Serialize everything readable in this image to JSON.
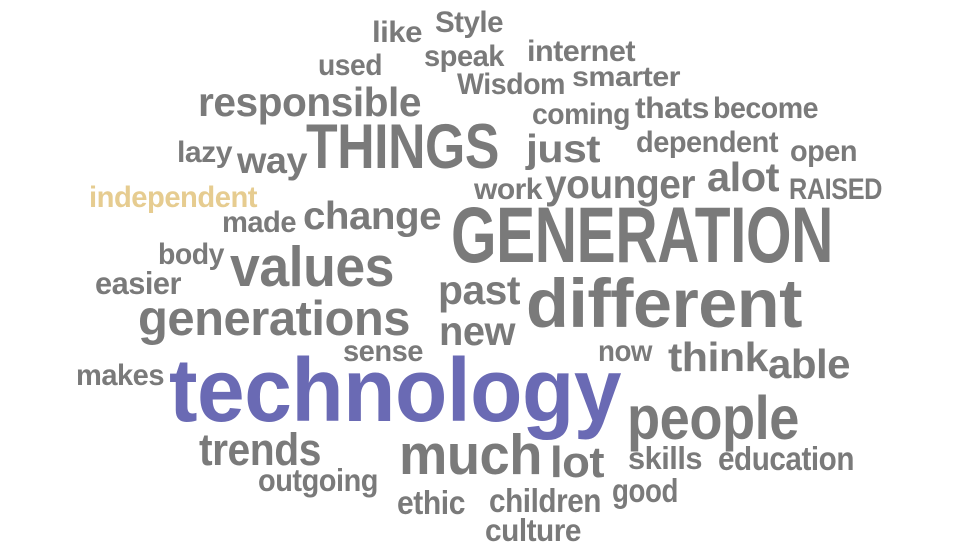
{
  "word_cloud": {
    "colors": {
      "default": "#7a7a7a",
      "technology": "#6a6ab4",
      "independent": "#e6cc90"
    },
    "words": [
      {
        "text": "Style",
        "color": "default"
      },
      {
        "text": "like",
        "color": "default"
      },
      {
        "text": "speak",
        "color": "default"
      },
      {
        "text": "internet",
        "color": "default"
      },
      {
        "text": "used",
        "color": "default"
      },
      {
        "text": "Wisdom",
        "color": "default"
      },
      {
        "text": "smarter",
        "color": "default"
      },
      {
        "text": "responsible",
        "color": "default"
      },
      {
        "text": "coming",
        "color": "default"
      },
      {
        "text": "thats",
        "color": "default"
      },
      {
        "text": "become",
        "color": "default"
      },
      {
        "text": "THINGS",
        "color": "default"
      },
      {
        "text": "lazy",
        "color": "default"
      },
      {
        "text": "way",
        "color": "default"
      },
      {
        "text": "just",
        "color": "default"
      },
      {
        "text": "dependent",
        "color": "default"
      },
      {
        "text": "open",
        "color": "default"
      },
      {
        "text": "work",
        "color": "default"
      },
      {
        "text": "younger",
        "color": "default"
      },
      {
        "text": "alot",
        "color": "default"
      },
      {
        "text": "RAISED",
        "color": "default"
      },
      {
        "text": "independent",
        "color": "independent"
      },
      {
        "text": "made",
        "color": "default"
      },
      {
        "text": "change",
        "color": "default"
      },
      {
        "text": "GENERATION",
        "color": "default"
      },
      {
        "text": "body",
        "color": "default"
      },
      {
        "text": "values",
        "color": "default"
      },
      {
        "text": "easier",
        "color": "default"
      },
      {
        "text": "past",
        "color": "default"
      },
      {
        "text": "different",
        "color": "default"
      },
      {
        "text": "generations",
        "color": "default"
      },
      {
        "text": "new",
        "color": "default"
      },
      {
        "text": "sense",
        "color": "default"
      },
      {
        "text": "now",
        "color": "default"
      },
      {
        "text": "think",
        "color": "default"
      },
      {
        "text": "able",
        "color": "default"
      },
      {
        "text": "makes",
        "color": "default"
      },
      {
        "text": "technology",
        "color": "technology"
      },
      {
        "text": "people",
        "color": "default"
      },
      {
        "text": "trends",
        "color": "default"
      },
      {
        "text": "much",
        "color": "default"
      },
      {
        "text": "lot",
        "color": "default"
      },
      {
        "text": "skills",
        "color": "default"
      },
      {
        "text": "education",
        "color": "default"
      },
      {
        "text": "outgoing",
        "color": "default"
      },
      {
        "text": "good",
        "color": "default"
      },
      {
        "text": "ethic",
        "color": "default"
      },
      {
        "text": "children",
        "color": "default"
      },
      {
        "text": "culture",
        "color": "default"
      }
    ]
  }
}
